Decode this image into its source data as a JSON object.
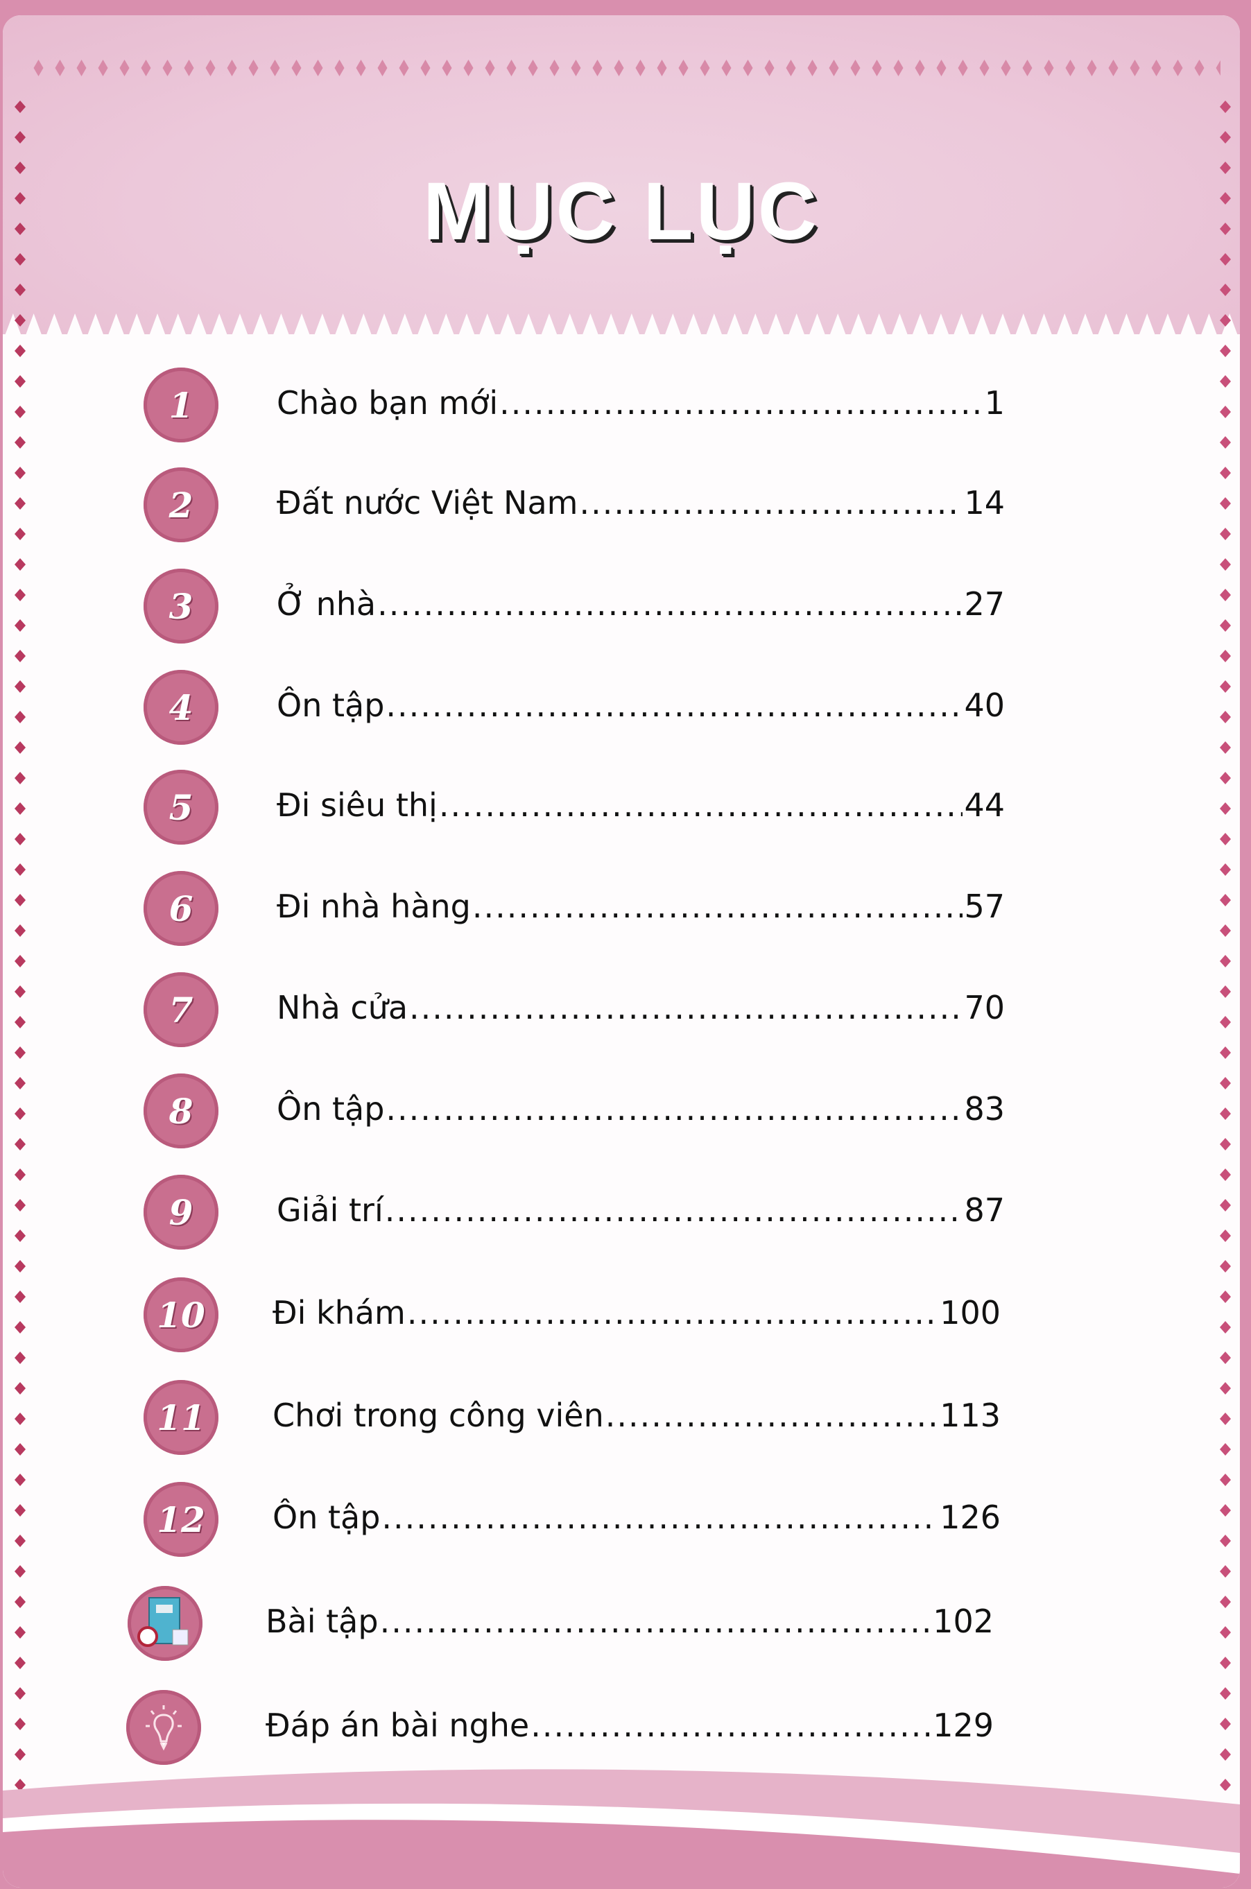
{
  "title": "MỤC LỤC",
  "colors": {
    "accent": "#c96f8f",
    "header_bg": "#ecc8da",
    "frame": "#d98fae"
  },
  "entries": [
    {
      "badge": "1",
      "label": "Chào bạn mới",
      "page": "1"
    },
    {
      "badge": "2",
      "label": "Đất nước Việt Nam",
      "page": "14"
    },
    {
      "badge": "3",
      "label": "Ở nhà",
      "page": "27"
    },
    {
      "badge": "4",
      "label": "Ôn tập",
      "page": "40"
    },
    {
      "badge": "5",
      "label": "Đi siêu thị",
      "page": "44"
    },
    {
      "badge": "6",
      "label": "Đi nhà hàng",
      "page": "57"
    },
    {
      "badge": "7",
      "label": "Nhà cửa",
      "page": "70"
    },
    {
      "badge": "8",
      "label": "Ôn tập",
      "page": "83"
    },
    {
      "badge": "9",
      "label": "Giải trí",
      "page": "87"
    },
    {
      "badge": "10",
      "label": "Đi khám",
      "page": "100"
    },
    {
      "badge": "11",
      "label": "Chơi trong công viên",
      "page": "113"
    },
    {
      "badge": "12",
      "label": "Ôn tập",
      "page": "126"
    },
    {
      "icon": "workbook-icon",
      "label": "Bài tập",
      "page": "102"
    },
    {
      "icon": "lightbulb-icon",
      "label": "Đáp án bài nghe",
      "page": "129"
    }
  ]
}
